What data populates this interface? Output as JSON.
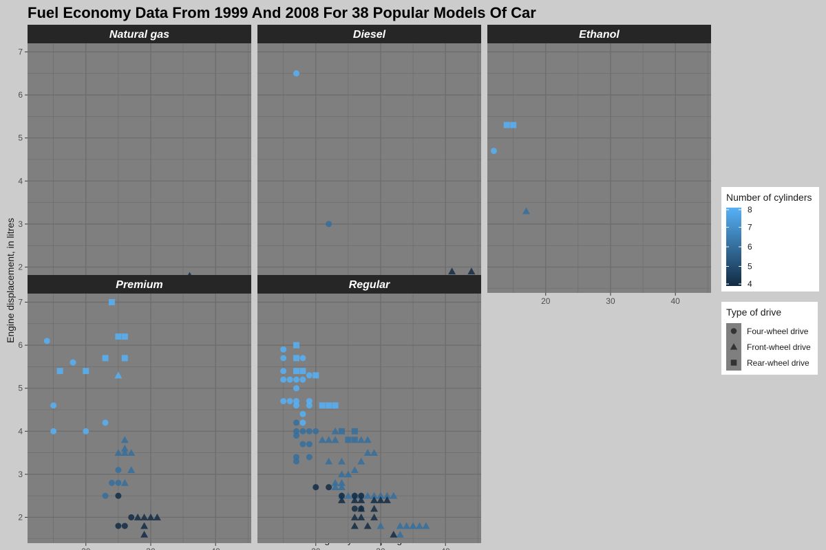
{
  "chart_data": {
    "type": "scatter",
    "title": "Fuel Economy Data From 1999 And 2008 For 38 Popular Models Of Car",
    "xlabel": "Highway miles per gallon",
    "ylabel": "Engine displacement, in litres",
    "xlim": [
      11,
      45.5
    ],
    "ylim": [
      1.4,
      7.2
    ],
    "x_ticks": [
      20,
      30,
      40
    ],
    "y_ticks": [
      2,
      3,
      4,
      5,
      6,
      7
    ],
    "grid": true,
    "facets": [
      "Natural gas",
      "Diesel",
      "Ethanol",
      "Premium",
      "Regular"
    ],
    "colors": {
      "low": "#132b43",
      "high": "#56b1f7",
      "panel_bg": "#7f7f7f",
      "strip_bg": "#262626",
      "page_bg": "#cccccc"
    },
    "color_legend": {
      "title": "Number of cylinders",
      "position": "right",
      "ticks": [
        8,
        7,
        6,
        5,
        4
      ]
    },
    "shape_legend": {
      "title": "Type of drive",
      "position": "right",
      "entries": [
        "Four-wheel drive",
        "Front-wheel drive",
        "Rear-wheel drive"
      ]
    },
    "shape_codes": {
      "4": "circle",
      "f": "triangle",
      "r": "square"
    },
    "points": {
      "Natural gas": [
        [
          36,
          1.8,
          4,
          "f"
        ]
      ],
      "Diesel": [
        [
          17,
          6.5,
          8,
          "4"
        ],
        [
          22,
          3.0,
          6,
          "4"
        ],
        [
          41,
          1.9,
          4,
          "f"
        ],
        [
          44,
          1.9,
          4,
          "f"
        ]
      ],
      "Ethanol": [
        [
          12,
          4.7,
          8,
          "4"
        ],
        [
          14,
          5.3,
          8,
          "r"
        ],
        [
          15,
          5.3,
          8,
          "r"
        ],
        [
          17,
          3.3,
          6,
          "f"
        ]
      ],
      "Premium": [
        [
          14,
          6.1,
          8,
          "4"
        ],
        [
          15,
          4.6,
          8,
          "4"
        ],
        [
          15,
          4.0,
          8,
          "4"
        ],
        [
          16,
          5.4,
          8,
          "r"
        ],
        [
          18,
          5.6,
          8,
          "4"
        ],
        [
          20,
          5.4,
          8,
          "r"
        ],
        [
          20,
          4.0,
          8,
          "4"
        ],
        [
          23,
          5.7,
          8,
          "r"
        ],
        [
          23,
          4.2,
          8,
          "4"
        ],
        [
          24,
          7.0,
          8,
          "r"
        ],
        [
          25,
          6.2,
          8,
          "r"
        ],
        [
          26,
          6.2,
          8,
          "r"
        ],
        [
          26,
          5.7,
          8,
          "r"
        ],
        [
          25,
          5.3,
          8,
          "f"
        ],
        [
          24,
          2.8,
          6,
          "4"
        ],
        [
          25,
          3.1,
          6,
          "4"
        ],
        [
          25,
          2.8,
          6,
          "4"
        ],
        [
          26,
          2.8,
          6,
          "f"
        ],
        [
          25,
          3.5,
          6,
          "f"
        ],
        [
          26,
          3.5,
          6,
          "f"
        ],
        [
          27,
          3.5,
          6,
          "f"
        ],
        [
          26,
          3.8,
          6,
          "f"
        ],
        [
          26,
          3.6,
          6,
          "f"
        ],
        [
          27,
          3.1,
          6,
          "f"
        ],
        [
          23,
          2.5,
          6,
          "4"
        ],
        [
          25,
          2.5,
          4,
          "4"
        ],
        [
          25,
          1.8,
          4,
          "4"
        ],
        [
          26,
          1.8,
          4,
          "4"
        ],
        [
          27,
          2.0,
          4,
          "4"
        ],
        [
          28,
          2.0,
          4,
          "f"
        ],
        [
          29,
          2.0,
          4,
          "f"
        ],
        [
          30,
          2.0,
          4,
          "f"
        ],
        [
          31,
          2.0,
          4,
          "f"
        ],
        [
          29,
          1.8,
          4,
          "f"
        ],
        [
          29,
          1.6,
          4,
          "f"
        ]
      ],
      "Regular": [
        [
          15,
          5.9,
          8,
          "4"
        ],
        [
          15,
          5.7,
          8,
          "4"
        ],
        [
          15,
          5.4,
          8,
          "4"
        ],
        [
          15,
          5.2,
          8,
          "4"
        ],
        [
          15,
          4.7,
          8,
          "4"
        ],
        [
          16,
          5.2,
          8,
          "4"
        ],
        [
          16,
          4.7,
          8,
          "4"
        ],
        [
          17,
          4.6,
          8,
          "4"
        ],
        [
          17,
          4.7,
          8,
          "4"
        ],
        [
          17,
          5.7,
          8,
          "r"
        ],
        [
          17,
          6.0,
          8,
          "r"
        ],
        [
          17,
          5.4,
          8,
          "r"
        ],
        [
          18,
          5.4,
          8,
          "r"
        ],
        [
          18,
          5.7,
          8,
          "4"
        ],
        [
          17,
          5.2,
          8,
          "4"
        ],
        [
          18,
          5.2,
          8,
          "4"
        ],
        [
          19,
          5.3,
          8,
          "4"
        ],
        [
          20,
          5.3,
          8,
          "r"
        ],
        [
          17,
          5.0,
          8,
          "4"
        ],
        [
          18,
          4.4,
          8,
          "4"
        ],
        [
          18,
          4.2,
          8,
          "4"
        ],
        [
          19,
          4.7,
          8,
          "4"
        ],
        [
          19,
          4.6,
          8,
          "4"
        ],
        [
          21,
          4.6,
          8,
          "r"
        ],
        [
          22,
          4.6,
          8,
          "r"
        ],
        [
          23,
          4.6,
          8,
          "r"
        ],
        [
          17,
          4.2,
          6,
          "4"
        ],
        [
          17,
          4.0,
          6,
          "4"
        ],
        [
          17,
          3.9,
          6,
          "4"
        ],
        [
          18,
          4.0,
          6,
          "4"
        ],
        [
          19,
          4.0,
          6,
          "4"
        ],
        [
          20,
          4.0,
          6,
          "4"
        ],
        [
          17,
          3.4,
          6,
          "4"
        ],
        [
          17,
          3.3,
          6,
          "4"
        ],
        [
          18,
          3.7,
          6,
          "4"
        ],
        [
          19,
          3.7,
          6,
          "4"
        ],
        [
          19,
          3.4,
          6,
          "4"
        ],
        [
          21,
          3.8,
          6,
          "f"
        ],
        [
          22,
          3.8,
          6,
          "f"
        ],
        [
          23,
          3.8,
          6,
          "f"
        ],
        [
          23,
          4.0,
          6,
          "f"
        ],
        [
          24,
          4.0,
          6,
          "r"
        ],
        [
          26,
          4.0,
          6,
          "r"
        ],
        [
          25,
          3.8,
          6,
          "r"
        ],
        [
          26,
          3.8,
          6,
          "r"
        ],
        [
          27,
          3.8,
          6,
          "f"
        ],
        [
          28,
          3.8,
          6,
          "f"
        ],
        [
          28,
          3.5,
          6,
          "f"
        ],
        [
          29,
          3.5,
          6,
          "f"
        ],
        [
          22,
          3.3,
          6,
          "f"
        ],
        [
          24,
          3.3,
          6,
          "f"
        ],
        [
          24,
          3.0,
          6,
          "f"
        ],
        [
          25,
          3.0,
          6,
          "f"
        ],
        [
          26,
          3.1,
          6,
          "f"
        ],
        [
          27,
          3.3,
          6,
          "f"
        ],
        [
          24,
          2.8,
          6,
          "f"
        ],
        [
          24,
          2.7,
          6,
          "f"
        ],
        [
          23,
          2.8,
          6,
          "f"
        ],
        [
          23,
          2.7,
          6,
          "f"
        ],
        [
          25,
          2.5,
          6,
          "f"
        ],
        [
          26,
          2.5,
          6,
          "f"
        ],
        [
          27,
          2.5,
          6,
          "f"
        ],
        [
          28,
          2.5,
          6,
          "f"
        ],
        [
          29,
          2.5,
          6,
          "f"
        ],
        [
          30,
          2.5,
          6,
          "f"
        ],
        [
          31,
          2.5,
          6,
          "f"
        ],
        [
          32,
          2.5,
          6,
          "f"
        ],
        [
          24,
          2.5,
          6,
          "f"
        ],
        [
          33,
          1.8,
          6,
          "f"
        ],
        [
          34,
          1.8,
          6,
          "f"
        ],
        [
          35,
          1.8,
          6,
          "f"
        ],
        [
          36,
          1.8,
          6,
          "f"
        ],
        [
          37,
          1.8,
          6,
          "f"
        ],
        [
          30,
          1.8,
          6,
          "f"
        ],
        [
          33,
          1.6,
          6,
          "f"
        ],
        [
          20,
          2.7,
          4,
          "4"
        ],
        [
          22,
          2.7,
          4,
          "4"
        ],
        [
          24,
          2.5,
          4,
          "4"
        ],
        [
          26,
          2.5,
          4,
          "4"
        ],
        [
          27,
          2.5,
          4,
          "4"
        ],
        [
          26,
          2.2,
          4,
          "4"
        ],
        [
          27,
          2.2,
          4,
          "4"
        ],
        [
          24,
          2.4,
          4,
          "f"
        ],
        [
          26,
          2.4,
          4,
          "f"
        ],
        [
          27,
          2.4,
          4,
          "f"
        ],
        [
          29,
          2.4,
          4,
          "f"
        ],
        [
          30,
          2.4,
          4,
          "f"
        ],
        [
          31,
          2.4,
          4,
          "f"
        ],
        [
          26,
          2.0,
          4,
          "f"
        ],
        [
          27,
          2.0,
          4,
          "f"
        ],
        [
          29,
          2.0,
          4,
          "f"
        ],
        [
          26,
          1.8,
          4,
          "f"
        ],
        [
          28,
          1.8,
          4,
          "f"
        ],
        [
          32,
          1.6,
          4,
          "f"
        ],
        [
          27,
          2.2,
          4,
          "f"
        ],
        [
          29,
          2.2,
          4,
          "f"
        ]
      ]
    }
  }
}
